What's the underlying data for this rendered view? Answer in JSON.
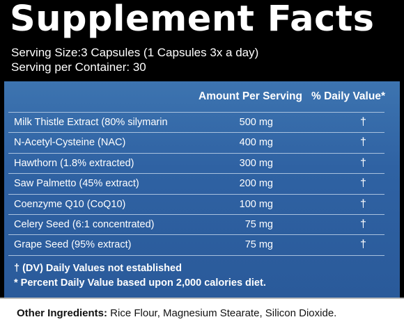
{
  "header": {
    "title": "Supplement Facts",
    "serving_size": "Serving Size:3 Capsules (1 Capsules 3x a day)",
    "servings_per_container": "Serving per Container: 30"
  },
  "table": {
    "col_amount": "Amount Per Serving",
    "col_dv": "% Daily Value*",
    "rows": [
      {
        "name": "Milk Thistle Extract (80% silymarin",
        "amount": "500 mg",
        "dv": "†"
      },
      {
        "name": "N-Acetyl-Cysteine (NAC)",
        "amount": "400 mg",
        "dv": "†"
      },
      {
        "name": "Hawthorn (1.8% extracted)",
        "amount": "300 mg",
        "dv": "†"
      },
      {
        "name": "Saw Palmetto (45% extract)",
        "amount": "200 mg",
        "dv": "†"
      },
      {
        "name": "Coenzyme Q10 (CoQ10)",
        "amount": "100 mg",
        "dv": "†"
      },
      {
        "name": "Celery Seed (6:1 concentrated)",
        "amount": "75 mg",
        "dv": "†"
      },
      {
        "name": "Grape Seed (95% extract)",
        "amount": "75 mg",
        "dv": "†"
      }
    ]
  },
  "footnotes": {
    "dv_not_established": "† (DV) Daily Values not established",
    "percent_basis": "*  Percent Daily Value based upon 2,000 calories diet."
  },
  "other_ingredients": {
    "label": "Other Ingredients:",
    "value": " Rice Flour, Magnesium Stearate, Silicon Dioxide."
  },
  "colors": {
    "header_bg": "#000000",
    "table_bg": "#2f62a3",
    "rule": "#a9c1de"
  }
}
